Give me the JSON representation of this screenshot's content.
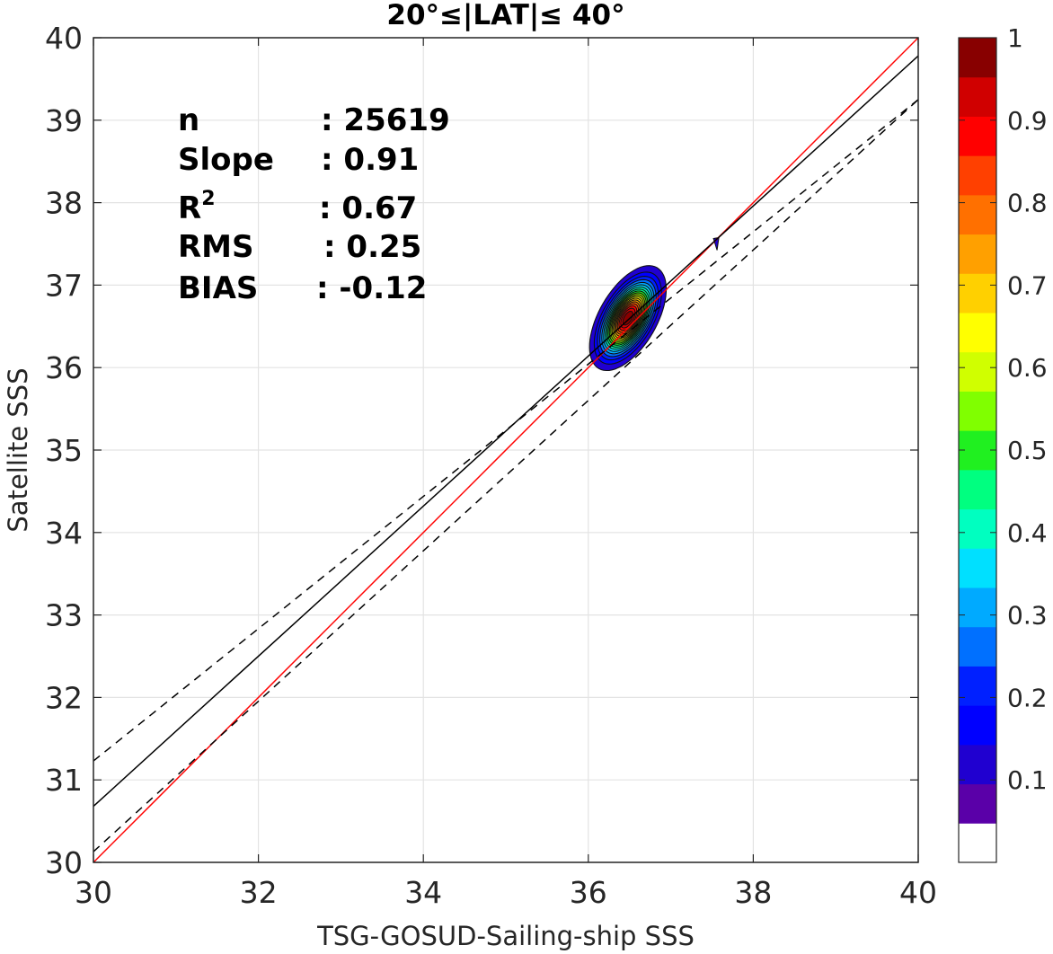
{
  "chart_data": {
    "type": "scatter",
    "title": "20°≤|LAT|≤ 40°",
    "xlabel": "TSG-GOSUD-Sailing-ship SSS",
    "ylabel": "Satellite SSS",
    "xlim": [
      30,
      40
    ],
    "ylim": [
      30,
      40
    ],
    "xticks": [
      "30",
      "32",
      "34",
      "36",
      "38",
      "40"
    ],
    "yticks": [
      "30",
      "31",
      "32",
      "33",
      "34",
      "35",
      "36",
      "37",
      "38",
      "39",
      "40"
    ],
    "grid": true,
    "stats": [
      {
        "label": "n",
        "value": ": 25619"
      },
      {
        "label": "Slope",
        "value": ": 0.91"
      },
      {
        "label": "R",
        "sup": "2",
        "value": ": 0.67"
      },
      {
        "label": "RMS",
        "value": ": 0.25"
      },
      {
        "label": "BIAS",
        "value": ": -0.12"
      }
    ],
    "lines": [
      {
        "role": "identity",
        "color": "#ff0000",
        "dash": false,
        "x": [
          30,
          40
        ],
        "y": [
          30,
          40
        ]
      },
      {
        "role": "regression",
        "color": "#000000",
        "dash": false,
        "x": [
          30,
          40
        ],
        "y": [
          30.68,
          39.78
        ]
      },
      {
        "role": "upper-bound",
        "color": "#000000",
        "dash": true,
        "x": [
          30,
          40
        ],
        "y": [
          31.23,
          39.25
        ]
      },
      {
        "role": "lower-bound",
        "color": "#000000",
        "dash": true,
        "x": [
          30,
          40
        ],
        "y": [
          30.13,
          39.25
        ]
      }
    ],
    "density_contours": {
      "center": [
        36.48,
        36.6
      ],
      "sigma_x": 0.19,
      "sigma_y": 0.26,
      "correlation": 0.55,
      "levels": [
        0.05,
        0.1,
        0.15,
        0.2,
        0.25,
        0.3,
        0.35,
        0.4,
        0.45,
        0.5,
        0.55,
        0.6,
        0.65,
        0.7,
        0.75,
        0.8,
        0.85,
        0.9,
        0.95
      ],
      "small_feature": [
        37.55,
        37.5
      ]
    },
    "colorbar": {
      "min": 0,
      "max": 1,
      "ticks": [
        "0.1",
        "0.2",
        "0.3",
        "0.4",
        "0.5",
        "0.6",
        "0.7",
        "0.8",
        "0.9",
        "1"
      ],
      "colors": [
        "#ffffff",
        "#5a00a8",
        "#2000d0",
        "#0000ff",
        "#0020ff",
        "#0070ff",
        "#00aaff",
        "#00e0ff",
        "#00ffc0",
        "#00ff80",
        "#20f020",
        "#80ff00",
        "#d0ff00",
        "#ffff00",
        "#ffd000",
        "#ffa000",
        "#ff7000",
        "#ff4000",
        "#ff0000",
        "#d00000",
        "#880000"
      ]
    }
  }
}
